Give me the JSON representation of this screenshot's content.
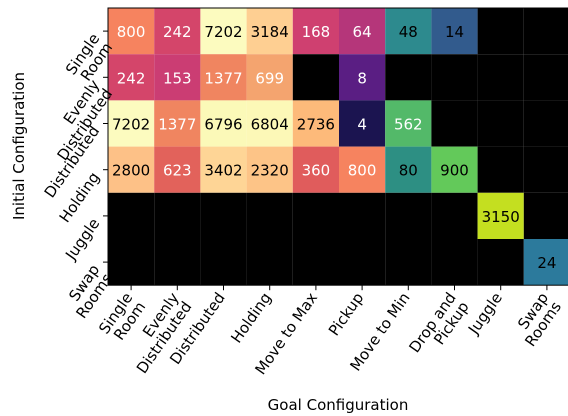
{
  "chart_data": {
    "type": "heatmap",
    "xlabel": "Goal Configuration",
    "ylabel": "Initial Configuration",
    "x_labels": [
      "Single Room",
      "Evenly Distributed",
      "Distributed",
      "Holding",
      "Move to Max",
      "Pickup",
      "Move to Min",
      "Drop and Pickup",
      "Juggle",
      "Swap Rooms"
    ],
    "y_labels": [
      "Single Room",
      "Evenly Distributed",
      "Distributed",
      "Holding",
      "Juggle",
      "Swap Rooms"
    ],
    "values": [
      [
        800,
        242,
        7202,
        3184,
        168,
        64,
        48,
        14,
        0,
        0
      ],
      [
        242,
        153,
        1377,
        699,
        0,
        8,
        0,
        0,
        0,
        0
      ],
      [
        7202,
        1377,
        6796,
        6804,
        2736,
        4,
        562,
        0,
        0,
        0
      ],
      [
        2800,
        623,
        3402,
        2320,
        360,
        800,
        80,
        900,
        0,
        0
      ],
      [
        0,
        0,
        0,
        0,
        0,
        0,
        0,
        0,
        3150,
        0
      ],
      [
        0,
        0,
        0,
        0,
        0,
        0,
        0,
        0,
        0,
        24
      ]
    ],
    "colormap": "magma (upper portion of each cell range)",
    "zero_cells_blank": true,
    "cell_label_colors": {
      "light_text": "#ffffff",
      "dark_text": "#000000"
    },
    "cell_colors": [
      [
        "#f6835f",
        "#d4456a",
        "#fcfbbf",
        "#fecf92",
        "#cf4070",
        "#b5367a",
        "#2d8a8e",
        "#325b8d",
        "#000000",
        "#000000"
      ],
      [
        "#d4456a",
        "#cb3d73",
        "#f08560",
        "#f4a46f",
        "#000000",
        "#5a1e83",
        "#000000",
        "#000000",
        "#000000",
        "#000000"
      ],
      [
        "#fcfbbf",
        "#f08560",
        "#fbf9b8",
        "#fcf8b7",
        "#fdba7a",
        "#1b1450",
        "#53b969",
        "#000000",
        "#000000",
        "#000000"
      ],
      [
        "#fdc187",
        "#e2625b",
        "#fed596",
        "#fdc487",
        "#e05c5c",
        "#f6835f",
        "#2d8f83",
        "#63c95a",
        "#000000",
        "#000000"
      ],
      [
        "#000000",
        "#000000",
        "#000000",
        "#000000",
        "#000000",
        "#000000",
        "#000000",
        "#000000",
        "#c4df20",
        "#000000"
      ],
      [
        "#000000",
        "#000000",
        "#000000",
        "#000000",
        "#000000",
        "#000000",
        "#000000",
        "#000000",
        "#000000",
        "#2c7a9c"
      ]
    ],
    "text_is_light": [
      [
        true,
        true,
        false,
        false,
        true,
        true,
        false,
        false,
        false,
        false
      ],
      [
        true,
        true,
        true,
        true,
        false,
        true,
        false,
        false,
        false,
        false
      ],
      [
        false,
        true,
        false,
        false,
        false,
        true,
        true,
        false,
        false,
        false
      ],
      [
        false,
        true,
        false,
        false,
        true,
        true,
        false,
        false,
        false,
        false
      ],
      [
        false,
        false,
        false,
        false,
        false,
        false,
        false,
        false,
        false,
        false
      ],
      [
        false,
        false,
        false,
        false,
        false,
        false,
        false,
        false,
        false,
        false
      ]
    ]
  }
}
